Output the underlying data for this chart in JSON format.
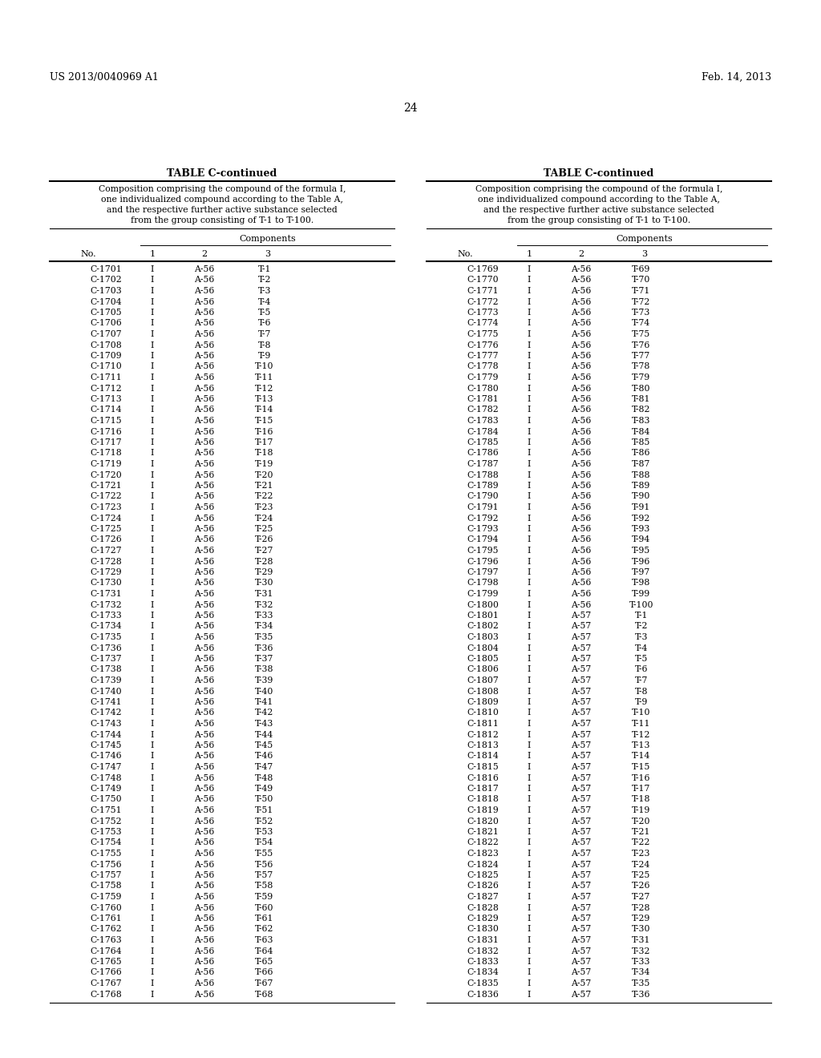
{
  "page_number": "24",
  "patent_left": "US 2013/0040969 A1",
  "patent_right": "Feb. 14, 2013",
  "table_title": "TABLE C-continued",
  "table_description_lines": [
    "Composition comprising the compound of the formula I,",
    "one individualized compound according to the Table A,",
    "and the respective further active substance selected",
    "from the group consisting of T-1 to T-100."
  ],
  "components_label": "Components",
  "col_headers": [
    "No.",
    "1",
    "2",
    "3"
  ],
  "left_data": [
    [
      "C-1701",
      "I",
      "A-56",
      "T-1"
    ],
    [
      "C-1702",
      "I",
      "A-56",
      "T-2"
    ],
    [
      "C-1703",
      "I",
      "A-56",
      "T-3"
    ],
    [
      "C-1704",
      "I",
      "A-56",
      "T-4"
    ],
    [
      "C-1705",
      "I",
      "A-56",
      "T-5"
    ],
    [
      "C-1706",
      "I",
      "A-56",
      "T-6"
    ],
    [
      "C-1707",
      "I",
      "A-56",
      "T-7"
    ],
    [
      "C-1708",
      "I",
      "A-56",
      "T-8"
    ],
    [
      "C-1709",
      "I",
      "A-56",
      "T-9"
    ],
    [
      "C-1710",
      "I",
      "A-56",
      "T-10"
    ],
    [
      "C-1711",
      "I",
      "A-56",
      "T-11"
    ],
    [
      "C-1712",
      "I",
      "A-56",
      "T-12"
    ],
    [
      "C-1713",
      "I",
      "A-56",
      "T-13"
    ],
    [
      "C-1714",
      "I",
      "A-56",
      "T-14"
    ],
    [
      "C-1715",
      "I",
      "A-56",
      "T-15"
    ],
    [
      "C-1716",
      "I",
      "A-56",
      "T-16"
    ],
    [
      "C-1717",
      "I",
      "A-56",
      "T-17"
    ],
    [
      "C-1718",
      "I",
      "A-56",
      "T-18"
    ],
    [
      "C-1719",
      "I",
      "A-56",
      "T-19"
    ],
    [
      "C-1720",
      "I",
      "A-56",
      "T-20"
    ],
    [
      "C-1721",
      "I",
      "A-56",
      "T-21"
    ],
    [
      "C-1722",
      "I",
      "A-56",
      "T-22"
    ],
    [
      "C-1723",
      "I",
      "A-56",
      "T-23"
    ],
    [
      "C-1724",
      "I",
      "A-56",
      "T-24"
    ],
    [
      "C-1725",
      "I",
      "A-56",
      "T-25"
    ],
    [
      "C-1726",
      "I",
      "A-56",
      "T-26"
    ],
    [
      "C-1727",
      "I",
      "A-56",
      "T-27"
    ],
    [
      "C-1728",
      "I",
      "A-56",
      "T-28"
    ],
    [
      "C-1729",
      "I",
      "A-56",
      "T-29"
    ],
    [
      "C-1730",
      "I",
      "A-56",
      "T-30"
    ],
    [
      "C-1731",
      "I",
      "A-56",
      "T-31"
    ],
    [
      "C-1732",
      "I",
      "A-56",
      "T-32"
    ],
    [
      "C-1733",
      "I",
      "A-56",
      "T-33"
    ],
    [
      "C-1734",
      "I",
      "A-56",
      "T-34"
    ],
    [
      "C-1735",
      "I",
      "A-56",
      "T-35"
    ],
    [
      "C-1736",
      "I",
      "A-56",
      "T-36"
    ],
    [
      "C-1737",
      "I",
      "A-56",
      "T-37"
    ],
    [
      "C-1738",
      "I",
      "A-56",
      "T-38"
    ],
    [
      "C-1739",
      "I",
      "A-56",
      "T-39"
    ],
    [
      "C-1740",
      "I",
      "A-56",
      "T-40"
    ],
    [
      "C-1741",
      "I",
      "A-56",
      "T-41"
    ],
    [
      "C-1742",
      "I",
      "A-56",
      "T-42"
    ],
    [
      "C-1743",
      "I",
      "A-56",
      "T-43"
    ],
    [
      "C-1744",
      "I",
      "A-56",
      "T-44"
    ],
    [
      "C-1745",
      "I",
      "A-56",
      "T-45"
    ],
    [
      "C-1746",
      "I",
      "A-56",
      "T-46"
    ],
    [
      "C-1747",
      "I",
      "A-56",
      "T-47"
    ],
    [
      "C-1748",
      "I",
      "A-56",
      "T-48"
    ],
    [
      "C-1749",
      "I",
      "A-56",
      "T-49"
    ],
    [
      "C-1750",
      "I",
      "A-56",
      "T-50"
    ],
    [
      "C-1751",
      "I",
      "A-56",
      "T-51"
    ],
    [
      "C-1752",
      "I",
      "A-56",
      "T-52"
    ],
    [
      "C-1753",
      "I",
      "A-56",
      "T-53"
    ],
    [
      "C-1754",
      "I",
      "A-56",
      "T-54"
    ],
    [
      "C-1755",
      "I",
      "A-56",
      "T-55"
    ],
    [
      "C-1756",
      "I",
      "A-56",
      "T-56"
    ],
    [
      "C-1757",
      "I",
      "A-56",
      "T-57"
    ],
    [
      "C-1758",
      "I",
      "A-56",
      "T-58"
    ],
    [
      "C-1759",
      "I",
      "A-56",
      "T-59"
    ],
    [
      "C-1760",
      "I",
      "A-56",
      "T-60"
    ],
    [
      "C-1761",
      "I",
      "A-56",
      "T-61"
    ],
    [
      "C-1762",
      "I",
      "A-56",
      "T-62"
    ],
    [
      "C-1763",
      "I",
      "A-56",
      "T-63"
    ],
    [
      "C-1764",
      "I",
      "A-56",
      "T-64"
    ],
    [
      "C-1765",
      "I",
      "A-56",
      "T-65"
    ],
    [
      "C-1766",
      "I",
      "A-56",
      "T-66"
    ],
    [
      "C-1767",
      "I",
      "A-56",
      "T-67"
    ],
    [
      "C-1768",
      "I",
      "A-56",
      "T-68"
    ]
  ],
  "right_data": [
    [
      "C-1769",
      "I",
      "A-56",
      "T-69"
    ],
    [
      "C-1770",
      "I",
      "A-56",
      "T-70"
    ],
    [
      "C-1771",
      "I",
      "A-56",
      "T-71"
    ],
    [
      "C-1772",
      "I",
      "A-56",
      "T-72"
    ],
    [
      "C-1773",
      "I",
      "A-56",
      "T-73"
    ],
    [
      "C-1774",
      "I",
      "A-56",
      "T-74"
    ],
    [
      "C-1775",
      "I",
      "A-56",
      "T-75"
    ],
    [
      "C-1776",
      "I",
      "A-56",
      "T-76"
    ],
    [
      "C-1777",
      "I",
      "A-56",
      "T-77"
    ],
    [
      "C-1778",
      "I",
      "A-56",
      "T-78"
    ],
    [
      "C-1779",
      "I",
      "A-56",
      "T-79"
    ],
    [
      "C-1780",
      "I",
      "A-56",
      "T-80"
    ],
    [
      "C-1781",
      "I",
      "A-56",
      "T-81"
    ],
    [
      "C-1782",
      "I",
      "A-56",
      "T-82"
    ],
    [
      "C-1783",
      "I",
      "A-56",
      "T-83"
    ],
    [
      "C-1784",
      "I",
      "A-56",
      "T-84"
    ],
    [
      "C-1785",
      "I",
      "A-56",
      "T-85"
    ],
    [
      "C-1786",
      "I",
      "A-56",
      "T-86"
    ],
    [
      "C-1787",
      "I",
      "A-56",
      "T-87"
    ],
    [
      "C-1788",
      "I",
      "A-56",
      "T-88"
    ],
    [
      "C-1789",
      "I",
      "A-56",
      "T-89"
    ],
    [
      "C-1790",
      "I",
      "A-56",
      "T-90"
    ],
    [
      "C-1791",
      "I",
      "A-56",
      "T-91"
    ],
    [
      "C-1792",
      "I",
      "A-56",
      "T-92"
    ],
    [
      "C-1793",
      "I",
      "A-56",
      "T-93"
    ],
    [
      "C-1794",
      "I",
      "A-56",
      "T-94"
    ],
    [
      "C-1795",
      "I",
      "A-56",
      "T-95"
    ],
    [
      "C-1796",
      "I",
      "A-56",
      "T-96"
    ],
    [
      "C-1797",
      "I",
      "A-56",
      "T-97"
    ],
    [
      "C-1798",
      "I",
      "A-56",
      "T-98"
    ],
    [
      "C-1799",
      "I",
      "A-56",
      "T-99"
    ],
    [
      "C-1800",
      "I",
      "A-56",
      "T-100"
    ],
    [
      "C-1801",
      "I",
      "A-57",
      "T-1"
    ],
    [
      "C-1802",
      "I",
      "A-57",
      "T-2"
    ],
    [
      "C-1803",
      "I",
      "A-57",
      "T-3"
    ],
    [
      "C-1804",
      "I",
      "A-57",
      "T-4"
    ],
    [
      "C-1805",
      "I",
      "A-57",
      "T-5"
    ],
    [
      "C-1806",
      "I",
      "A-57",
      "T-6"
    ],
    [
      "C-1807",
      "I",
      "A-57",
      "T-7"
    ],
    [
      "C-1808",
      "I",
      "A-57",
      "T-8"
    ],
    [
      "C-1809",
      "I",
      "A-57",
      "T-9"
    ],
    [
      "C-1810",
      "I",
      "A-57",
      "T-10"
    ],
    [
      "C-1811",
      "I",
      "A-57",
      "T-11"
    ],
    [
      "C-1812",
      "I",
      "A-57",
      "T-12"
    ],
    [
      "C-1813",
      "I",
      "A-57",
      "T-13"
    ],
    [
      "C-1814",
      "I",
      "A-57",
      "T-14"
    ],
    [
      "C-1815",
      "I",
      "A-57",
      "T-15"
    ],
    [
      "C-1816",
      "I",
      "A-57",
      "T-16"
    ],
    [
      "C-1817",
      "I",
      "A-57",
      "T-17"
    ],
    [
      "C-1818",
      "I",
      "A-57",
      "T-18"
    ],
    [
      "C-1819",
      "I",
      "A-57",
      "T-19"
    ],
    [
      "C-1820",
      "I",
      "A-57",
      "T-20"
    ],
    [
      "C-1821",
      "I",
      "A-57",
      "T-21"
    ],
    [
      "C-1822",
      "I",
      "A-57",
      "T-22"
    ],
    [
      "C-1823",
      "I",
      "A-57",
      "T-23"
    ],
    [
      "C-1824",
      "I",
      "A-57",
      "T-24"
    ],
    [
      "C-1825",
      "I",
      "A-57",
      "T-25"
    ],
    [
      "C-1826",
      "I",
      "A-57",
      "T-26"
    ],
    [
      "C-1827",
      "I",
      "A-57",
      "T-27"
    ],
    [
      "C-1828",
      "I",
      "A-57",
      "T-28"
    ],
    [
      "C-1829",
      "I",
      "A-57",
      "T-29"
    ],
    [
      "C-1830",
      "I",
      "A-57",
      "T-30"
    ],
    [
      "C-1831",
      "I",
      "A-57",
      "T-31"
    ],
    [
      "C-1832",
      "I",
      "A-57",
      "T-32"
    ],
    [
      "C-1833",
      "I",
      "A-57",
      "T-33"
    ],
    [
      "C-1834",
      "I",
      "A-57",
      "T-34"
    ],
    [
      "C-1835",
      "I",
      "A-57",
      "T-35"
    ],
    [
      "C-1836",
      "I",
      "A-57",
      "T-36"
    ]
  ],
  "bg_color": "#ffffff"
}
